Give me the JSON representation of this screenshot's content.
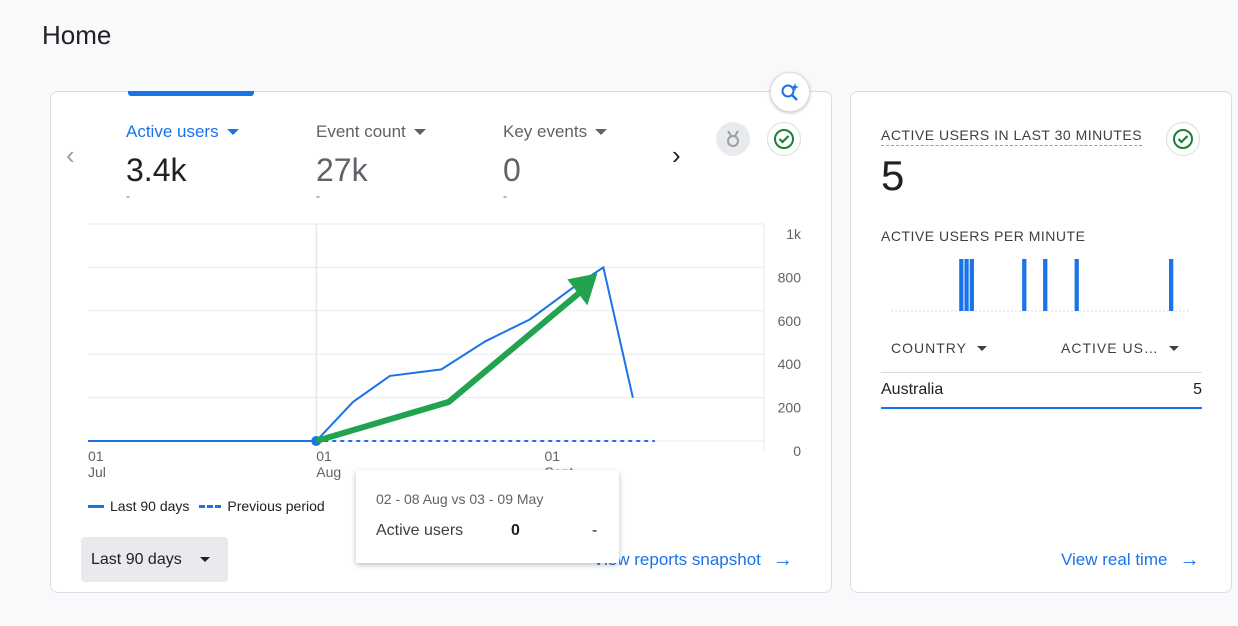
{
  "page": {
    "title": "Home"
  },
  "tabs": [
    {
      "label": "Active users",
      "value": "3.4k",
      "delta": "-"
    },
    {
      "label": "Event count",
      "value": "27k",
      "delta": "-"
    },
    {
      "label": "Key events",
      "value": "0",
      "delta": "-"
    }
  ],
  "chart_data": {
    "type": "line",
    "x_tick_labels": [
      {
        "day": "01",
        "month": "Jul"
      },
      {
        "day": "01",
        "month": "Aug"
      },
      {
        "day": "01",
        "month": "Sept"
      }
    ],
    "y_ticks": [
      "1k",
      "800",
      "600",
      "400",
      "200",
      "0"
    ],
    "ylim": [
      0,
      1000
    ],
    "series": [
      {
        "name": "Last 90 days",
        "style": "solid",
        "color": "#1a73e8",
        "points": [
          [
            0,
            0
          ],
          [
            31,
            0
          ],
          [
            36,
            180
          ],
          [
            41,
            300
          ],
          [
            48,
            330
          ],
          [
            54,
            460
          ],
          [
            60,
            560
          ],
          [
            66,
            710
          ],
          [
            70,
            800
          ],
          [
            74,
            200
          ]
        ]
      },
      {
        "name": "Previous period",
        "style": "dashed",
        "color": "#1a73e8",
        "points": [
          [
            31,
            0
          ],
          [
            77,
            0
          ]
        ]
      }
    ],
    "annotation_arrow": {
      "color": "#22a350",
      "from": [
        31,
        0
      ],
      "to": [
        70,
        800
      ]
    }
  },
  "legend": {
    "current": "Last 90 days",
    "previous": "Previous period"
  },
  "date_range": {
    "label": "Last 90 days"
  },
  "tooltip": {
    "title": "02 - 08 Aug vs 03 - 09 May",
    "metric": "Active users",
    "value": "0",
    "previous": "-"
  },
  "links": {
    "snapshot": "View reports snapshot",
    "realtime": "View real time"
  },
  "realtime": {
    "title": "ACTIVE USERS IN LAST 30 MINUTES",
    "value": "5",
    "per_minute_label": "ACTIVE USERS PER MINUTE",
    "bars": [
      0,
      0,
      0,
      0,
      0,
      0,
      0,
      0,
      0,
      0,
      0,
      0,
      0,
      1,
      1,
      1,
      0,
      0,
      0,
      0,
      0,
      0,
      0,
      0,
      0,
      1,
      0,
      0,
      0,
      1,
      0,
      0,
      0,
      0,
      0,
      1,
      0,
      0,
      0,
      0,
      0,
      0,
      0,
      0,
      0,
      0,
      0,
      0,
      0,
      0,
      0,
      0,
      0,
      1,
      0,
      0,
      0
    ],
    "table": {
      "col_country": "COUNTRY",
      "col_users": "ACTIVE US…",
      "rows": [
        {
          "country": "Australia",
          "users": "5"
        }
      ]
    }
  },
  "colors": {
    "accent": "#1a73e8",
    "annotation": "#22a350",
    "success": "#188038"
  }
}
